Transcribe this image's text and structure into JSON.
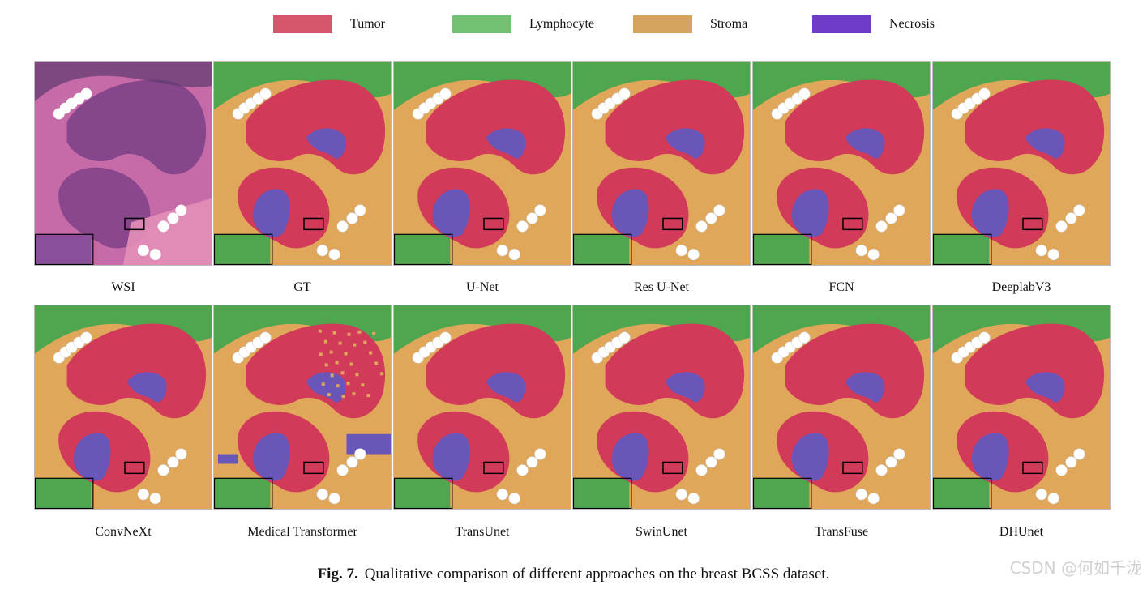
{
  "legend": [
    {
      "label": "Tumor",
      "color": "#d6566c"
    },
    {
      "label": "Lymphocyte",
      "color": "#72c172"
    },
    {
      "label": "Stroma",
      "color": "#d4a45e"
    },
    {
      "label": "Necrosis",
      "color": "#6e3bc9"
    }
  ],
  "panels": [
    {
      "label": "WSI",
      "kind": "wsi"
    },
    {
      "label": "GT",
      "kind": "seg"
    },
    {
      "label": "U-Net",
      "kind": "seg"
    },
    {
      "label": "Res U-Net",
      "kind": "seg"
    },
    {
      "label": "FCN",
      "kind": "seg"
    },
    {
      "label": "DeeplabV3",
      "kind": "seg"
    },
    {
      "label": "ConvNeXt",
      "kind": "seg"
    },
    {
      "label": "Medical Transformer",
      "kind": "seg-noisy"
    },
    {
      "label": "TransUnet",
      "kind": "seg"
    },
    {
      "label": "SwinUnet",
      "kind": "seg"
    },
    {
      "label": "TransFuse",
      "kind": "seg"
    },
    {
      "label": "DHUnet",
      "kind": "seg"
    }
  ],
  "caption": {
    "prefix": "Fig. 7.",
    "text": "Qualitative comparison of different approaches on the breast BCSS dataset."
  },
  "watermark": "CSDN @何如千泷",
  "colors": {
    "tumor": "#d23a5a",
    "lymphocyte": "#4fa64f",
    "stroma": "#e0a75a",
    "necrosis": "#6a55b8",
    "wsi_bg": "#c76aa8",
    "wsi_dark": "#7a3f86",
    "wsi_pink": "#e38fb8"
  }
}
